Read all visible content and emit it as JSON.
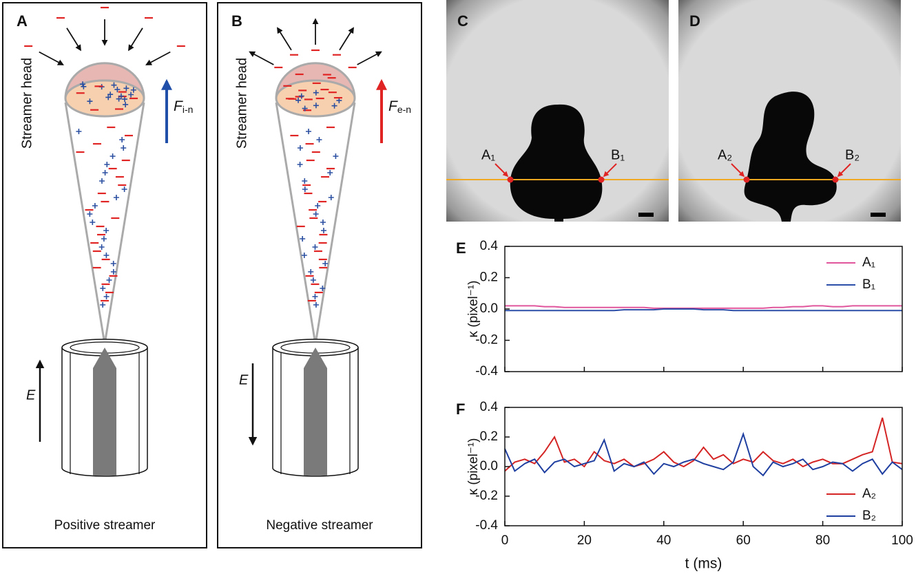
{
  "panels": {
    "A": {
      "label": "A",
      "side_text": "Streamer head",
      "force": "F",
      "force_sub": "i-n",
      "field": "E",
      "caption": "Positive streamer"
    },
    "B": {
      "label": "B",
      "side_text": "Streamer head",
      "force": "F",
      "force_sub": "e-n",
      "field": "E",
      "caption": "Negative streamer"
    },
    "C": {
      "label": "C",
      "points": [
        "A₁",
        "B₁"
      ]
    },
    "D": {
      "label": "D",
      "points": [
        "A₂",
        "B₂"
      ]
    }
  },
  "chart_data": [
    {
      "type": "line",
      "panel_label": "E",
      "ylabel": "κ (pixel⁻¹)",
      "legend": "upper right",
      "x": [
        0,
        2.5,
        5,
        7.5,
        10,
        12.5,
        15,
        17.5,
        20,
        22.5,
        25,
        27.5,
        30,
        32.5,
        35,
        37.5,
        40,
        42.5,
        45,
        47.5,
        50,
        52.5,
        55,
        57.5,
        60,
        62.5,
        65,
        67.5,
        70,
        72.5,
        75,
        77.5,
        80,
        82.5,
        85,
        87.5,
        90,
        92.5,
        95,
        97.5,
        100
      ],
      "series": [
        {
          "name": "A₁",
          "color": "#e0559c",
          "values": [
            0.02,
            0.02,
            0.02,
            0.02,
            0.015,
            0.015,
            0.01,
            0.01,
            0.01,
            0.01,
            0.01,
            0.01,
            0.01,
            0.01,
            0.01,
            0.005,
            0.005,
            0.005,
            0.005,
            0.005,
            0.005,
            0.005,
            0.005,
            0.005,
            0.005,
            0.005,
            0.005,
            0.01,
            0.01,
            0.015,
            0.015,
            0.02,
            0.02,
            0.015,
            0.015,
            0.02,
            0.02,
            0.02,
            0.02,
            0.02,
            0.02
          ]
        },
        {
          "name": "B₁",
          "color": "#2b4fa8",
          "values": [
            -0.01,
            -0.01,
            -0.01,
            -0.01,
            -0.01,
            -0.01,
            -0.01,
            -0.01,
            -0.01,
            -0.01,
            -0.01,
            -0.01,
            -0.005,
            -0.005,
            -0.005,
            -0.005,
            0,
            0,
            0,
            0,
            -0.005,
            -0.005,
            -0.005,
            -0.01,
            -0.01,
            -0.01,
            -0.01,
            -0.01,
            -0.01,
            -0.01,
            -0.01,
            -0.01,
            -0.01,
            -0.01,
            -0.01,
            -0.01,
            -0.01,
            -0.01,
            -0.01,
            -0.01,
            -0.01
          ]
        }
      ],
      "xlim": [
        0,
        100
      ],
      "xticks": [
        0,
        20,
        40,
        60,
        80,
        100
      ],
      "show_xtick_labels": false,
      "ylim": [
        -0.4,
        0.4
      ],
      "yticks": [
        -0.4,
        -0.2,
        {
          "value": 0,
          "label": "0.0"
        },
        0.2,
        0.4
      ]
    },
    {
      "type": "line",
      "panel_label": "F",
      "ylabel": "κ (pixel⁻¹)",
      "xlabel": "t (ms)",
      "legend": "lower right",
      "x": [
        0,
        2.5,
        5,
        7.5,
        10,
        12.5,
        15,
        17.5,
        20,
        22.5,
        25,
        27.5,
        30,
        32.5,
        35,
        37.5,
        40,
        42.5,
        45,
        47.5,
        50,
        52.5,
        55,
        57.5,
        60,
        62.5,
        65,
        67.5,
        70,
        72.5,
        75,
        77.5,
        80,
        82.5,
        85,
        87.5,
        90,
        92.5,
        95,
        97.5,
        100
      ],
      "series": [
        {
          "name": "A₂",
          "color": "#d42424",
          "values": [
            -0.03,
            0.03,
            0.05,
            0.02,
            0.1,
            0.2,
            0.03,
            0.05,
            0.0,
            0.1,
            0.04,
            0.02,
            0.05,
            0.0,
            0.02,
            0.05,
            0.1,
            0.03,
            0.0,
            0.04,
            0.13,
            0.05,
            0.08,
            0.02,
            0.05,
            0.03,
            0.1,
            0.04,
            0.02,
            0.05,
            0.0,
            0.03,
            0.05,
            0.02,
            0.02,
            0.05,
            0.08,
            0.1,
            0.33,
            0.03,
            0.02
          ]
        },
        {
          "name": "B₂",
          "color": "#1f3fa0",
          "values": [
            0.12,
            -0.03,
            0.02,
            0.05,
            -0.04,
            0.03,
            0.05,
            0.0,
            0.02,
            0.04,
            0.18,
            -0.03,
            0.02,
            0.0,
            0.03,
            -0.05,
            0.02,
            0.0,
            0.03,
            0.05,
            0.02,
            0.0,
            -0.02,
            0.03,
            0.22,
            0.0,
            -0.06,
            0.03,
            0.0,
            0.02,
            0.05,
            -0.02,
            0.0,
            0.03,
            0.02,
            -0.03,
            0.02,
            0.05,
            -0.05,
            0.03,
            -0.02
          ]
        }
      ],
      "xlim": [
        0,
        100
      ],
      "xticks": [
        0,
        20,
        40,
        60,
        80,
        100
      ],
      "show_xtick_labels": true,
      "ylim": [
        -0.4,
        0.4
      ],
      "yticks": [
        -0.4,
        -0.2,
        {
          "value": 0,
          "label": "0.0"
        },
        0.2,
        0.4
      ]
    }
  ]
}
